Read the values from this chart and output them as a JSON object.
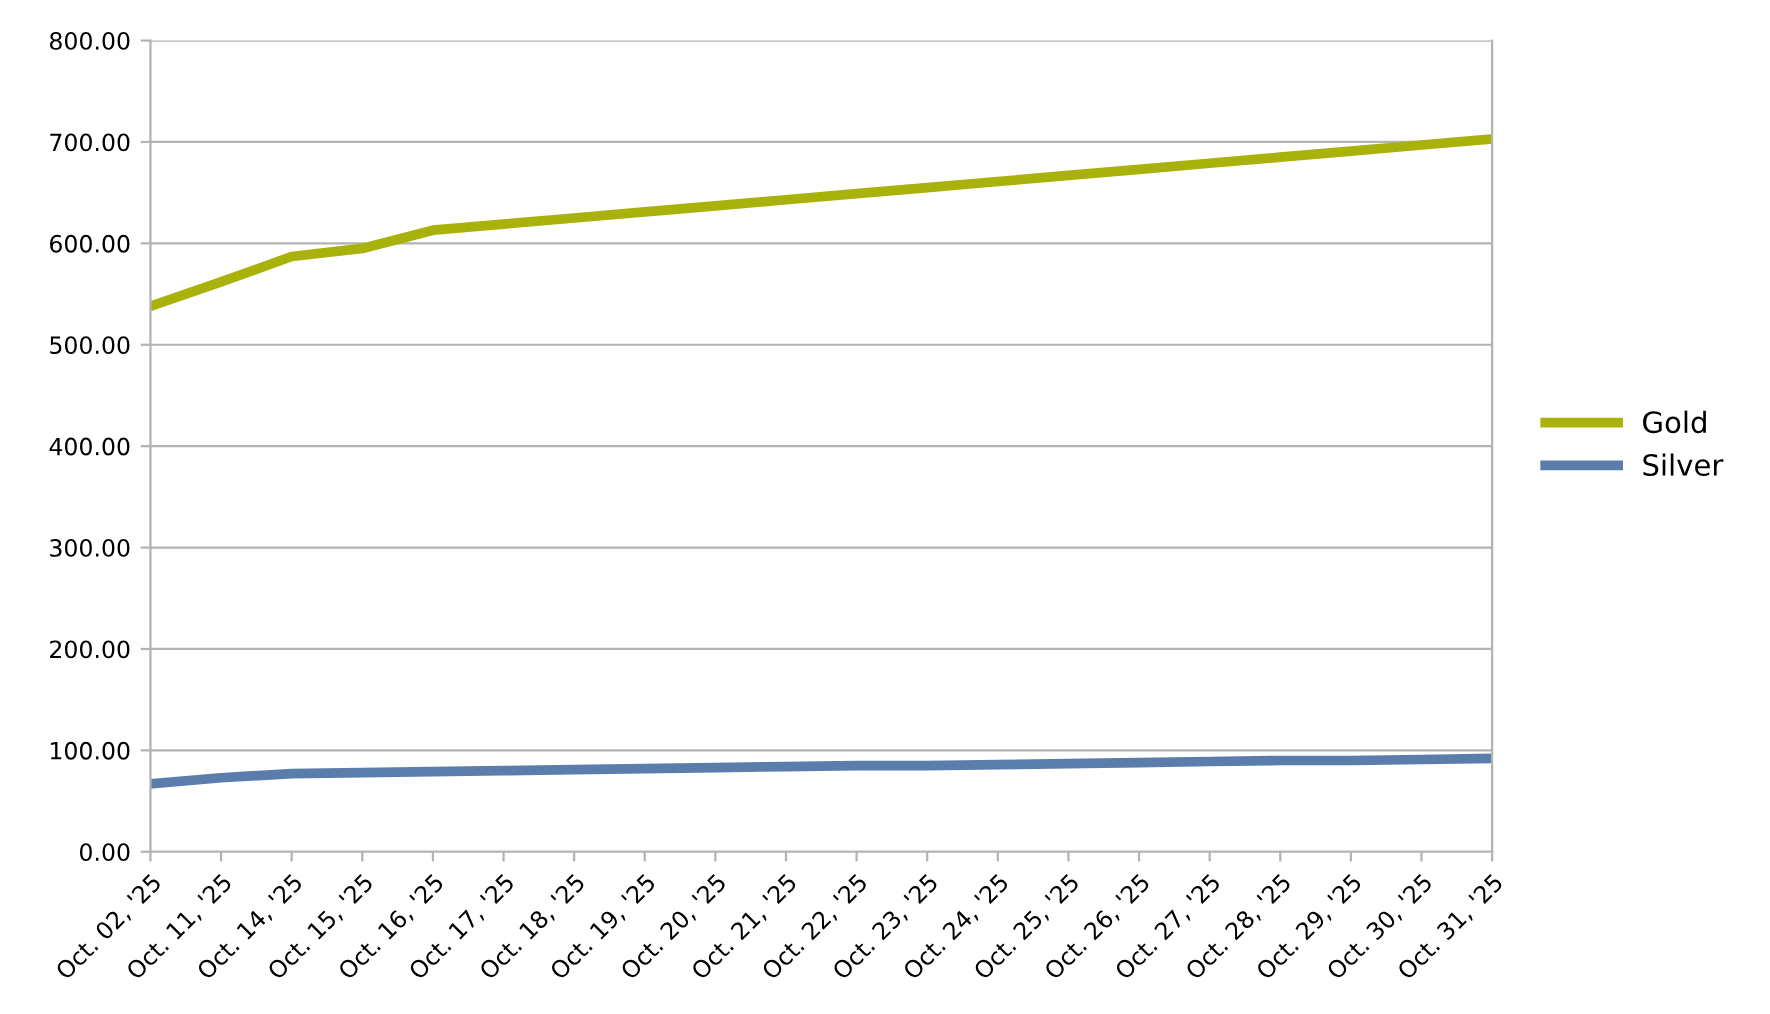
{
  "chart_data": {
    "type": "line",
    "categories": [
      "Oct. 02, '25",
      "Oct. 11, '25",
      "Oct. 14, '25",
      "Oct. 15, '25",
      "Oct. 16, '25",
      "Oct. 17, '25",
      "Oct. 18, '25",
      "Oct. 19, '25",
      "Oct. 20, '25",
      "Oct. 21, '25",
      "Oct. 22, '25",
      "Oct. 23, '25",
      "Oct. 24, '25",
      "Oct. 25, '25",
      "Oct. 26, '25",
      "Oct. 27, '25",
      "Oct. 28, '25",
      "Oct. 29, '25",
      "Oct. 30, '25",
      "Oct. 31, '25"
    ],
    "series": [
      {
        "name": "Gold",
        "color": "#a9b20b",
        "values": [
          538,
          562,
          587,
          595,
          613,
          619,
          625,
          631,
          637,
          643,
          649,
          655,
          661,
          667,
          673,
          679,
          685,
          691,
          697,
          703
        ]
      },
      {
        "name": "Silver",
        "color": "#5a7dab",
        "values": [
          67,
          73,
          77,
          78,
          79,
          80,
          81,
          82,
          83,
          84,
          85,
          85,
          86,
          87,
          88,
          89,
          90,
          90,
          91,
          92
        ]
      }
    ],
    "ylim": [
      0,
      800
    ],
    "yticks": [
      {
        "value": 0,
        "label": "0.00"
      },
      {
        "value": 100,
        "label": "100.00"
      },
      {
        "value": 200,
        "label": "200.00"
      },
      {
        "value": 300,
        "label": "300.00"
      },
      {
        "value": 400,
        "label": "400.00"
      },
      {
        "value": 500,
        "label": "500.00"
      },
      {
        "value": 600,
        "label": "600.00"
      },
      {
        "value": 700,
        "label": "700.00"
      },
      {
        "value": 800,
        "label": "800.00"
      }
    ],
    "grid": "y",
    "legend": "right",
    "marker": "none",
    "line_style": "solid"
  }
}
